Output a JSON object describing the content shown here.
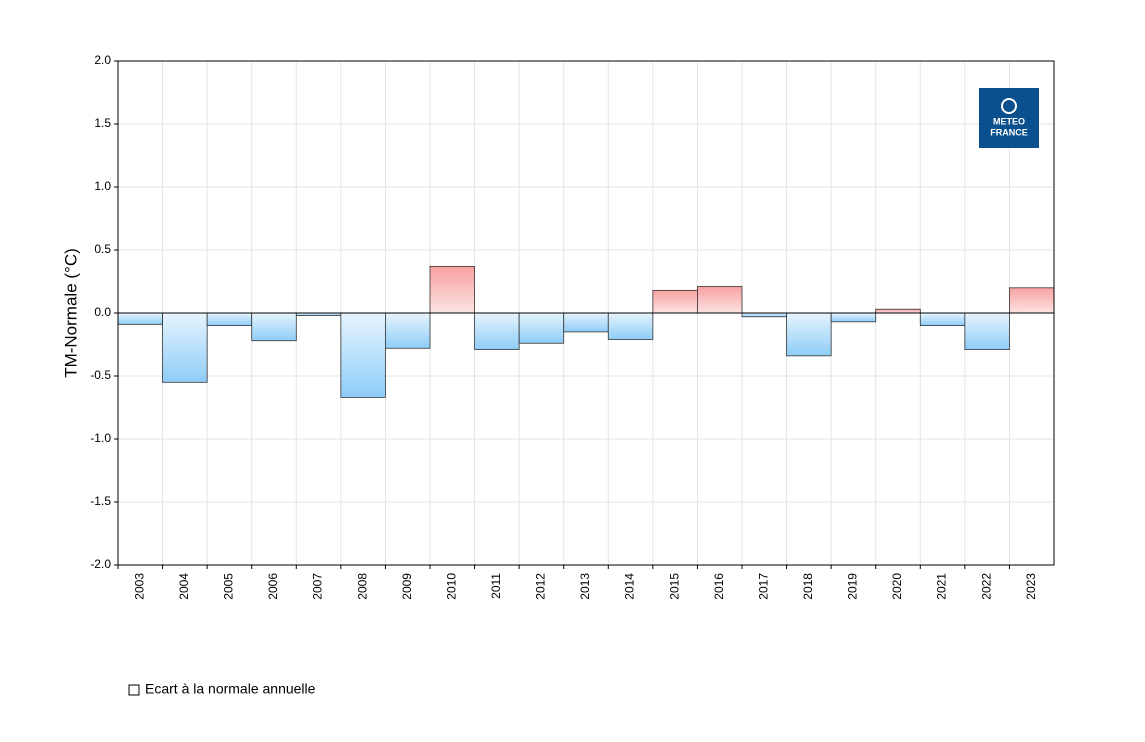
{
  "chart_data": {
    "type": "bar",
    "y_label": "TM-Normale (°C)",
    "categories": [
      "2003",
      "2004",
      "2005",
      "2006",
      "2007",
      "2008",
      "2009",
      "2010",
      "2011",
      "2012",
      "2013",
      "2014",
      "2015",
      "2016",
      "2017",
      "2018",
      "2019",
      "2020",
      "2021",
      "2022",
      "2023"
    ],
    "series": [
      {
        "name": "Ecart à la normale annuelle",
        "values": [
          -0.09,
          -0.55,
          -0.1,
          -0.22,
          -0.02,
          -0.67,
          -0.28,
          0.37,
          -0.29,
          -0.24,
          -0.15,
          -0.21,
          0.18,
          0.21,
          -0.03,
          -0.34,
          -0.07,
          0.03,
          -0.1,
          -0.29,
          0.2
        ]
      }
    ],
    "positive_color": "#f7a1a1",
    "negative_color": "#8ecdf7",
    "ylim": [
      -2.0,
      2.0
    ],
    "yticks": [
      {
        "value": -2,
        "label": "-2.0"
      },
      {
        "value": -1.5,
        "label": "-1.5"
      },
      {
        "value": -1,
        "label": "-1.0"
      },
      {
        "value": -0.5,
        "label": "-0.5"
      },
      {
        "value": 0,
        "label": "0.0"
      },
      {
        "value": 0.5,
        "label": "0.5"
      },
      {
        "value": 1,
        "label": "1.0"
      },
      {
        "value": 1.5,
        "label": "1.5"
      },
      {
        "value": 2,
        "label": "2.0"
      }
    ],
    "grid": true,
    "logo": {
      "line1": "METEO",
      "line2": "FRANCE"
    }
  }
}
